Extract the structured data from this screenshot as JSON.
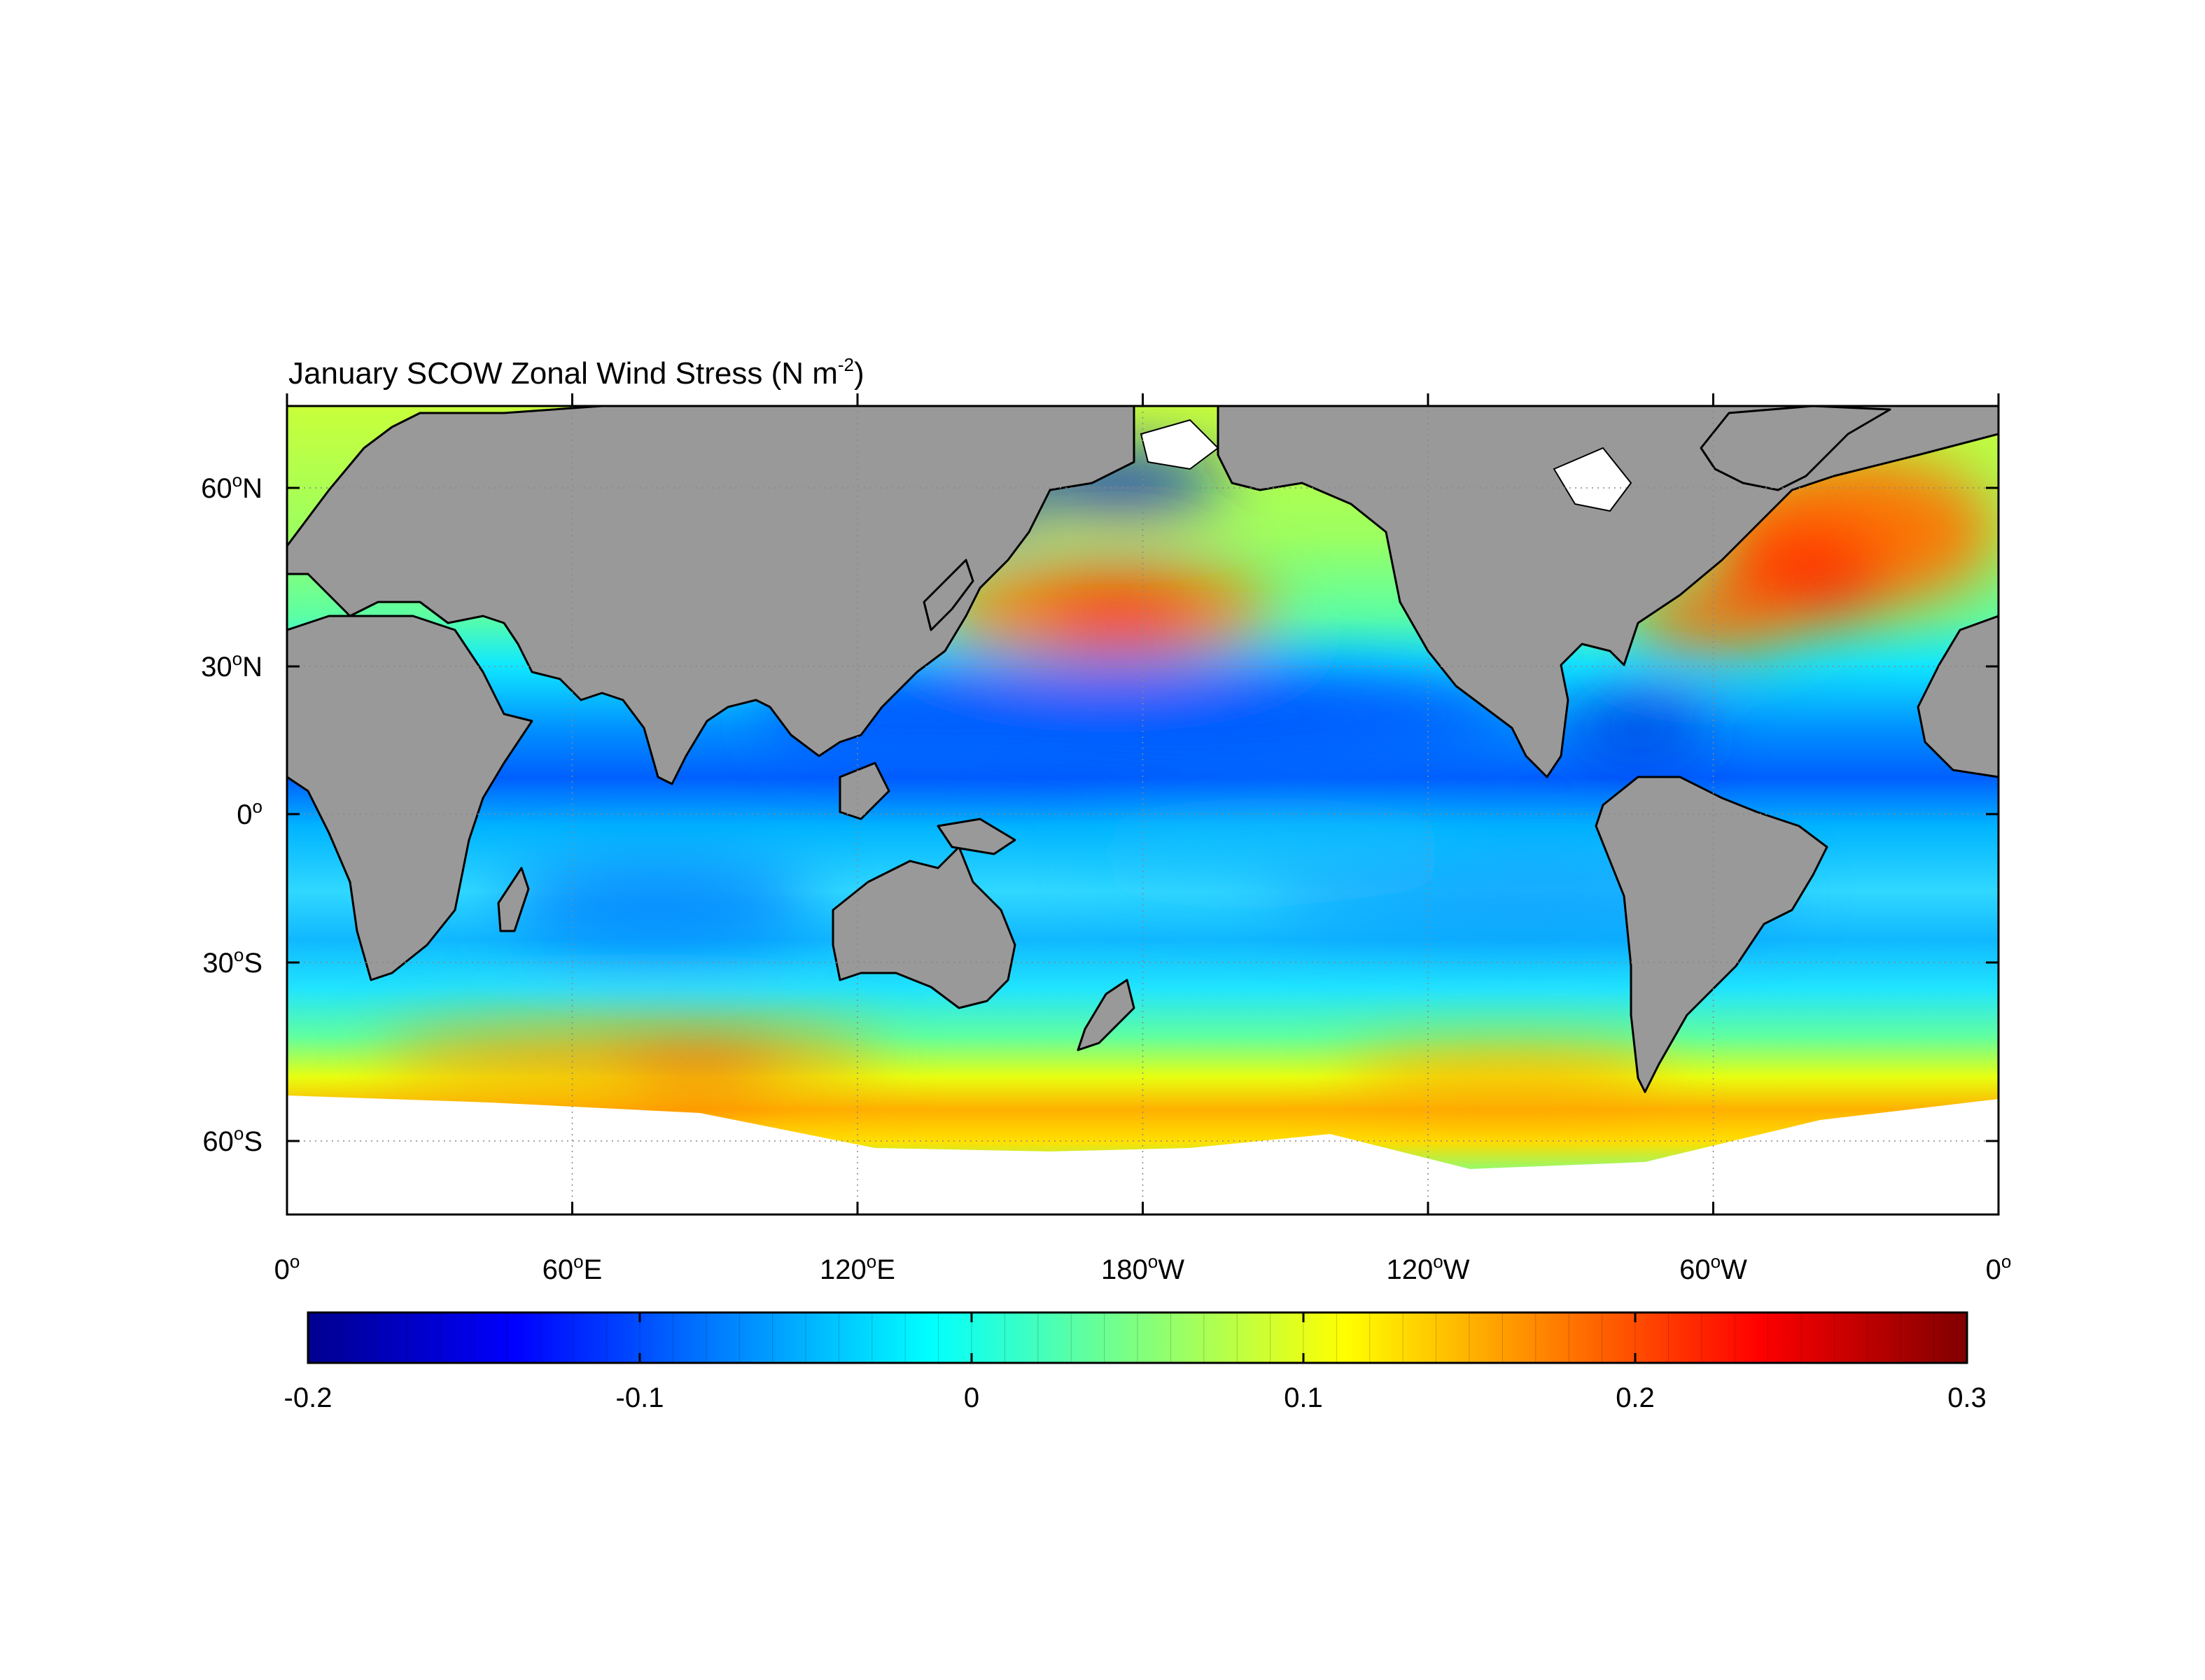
{
  "map": {
    "title": "January SCOW Zonal Wind Stress",
    "units_main": "N m",
    "units_exp": "-2",
    "degree_mark": "o",
    "lat_labels": [
      {
        "num": "60",
        "hem": "N"
      },
      {
        "num": "30",
        "hem": "N"
      },
      {
        "num": "0",
        "hem": ""
      },
      {
        "num": "30",
        "hem": "S"
      },
      {
        "num": "60",
        "hem": "S"
      }
    ],
    "lon_labels": [
      {
        "num": "0",
        "hem": ""
      },
      {
        "num": "60",
        "hem": "E"
      },
      {
        "num": "120",
        "hem": "E"
      },
      {
        "num": "180",
        "hem": "W"
      },
      {
        "num": "120",
        "hem": "W"
      },
      {
        "num": "60",
        "hem": "W"
      },
      {
        "num": "0",
        "hem": ""
      }
    ]
  },
  "colorbar": {
    "tick_labels": [
      "-0.2",
      "-0.1",
      "0",
      "0.1",
      "0.2",
      "0.3"
    ],
    "min": -0.2,
    "max": 0.3,
    "colormap": "jet"
  },
  "colors": {
    "land": "#999999",
    "ice": "#ffffff",
    "max_red": "#ff2a00",
    "min_blue": "#0018d8",
    "near_zero": "#00ffff"
  }
}
